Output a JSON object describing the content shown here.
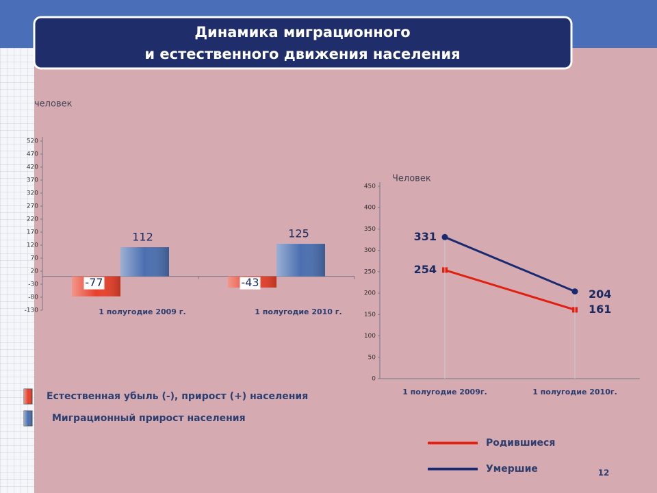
{
  "title": [
    "Динамика миграционного",
    "и естественного движения населения"
  ],
  "page_number": "12",
  "chart_data": [
    {
      "type": "bar",
      "y_label": "человек",
      "categories": [
        "1 полугодие 2009 г.",
        "1 полугодие 2010 г."
      ],
      "series": [
        {
          "name": "Естественная убыль (-), прирост (+) населения",
          "color": "#e8402a",
          "values": [
            -77,
            -43
          ]
        },
        {
          "name": "Миграционный прирост населения",
          "color": "#4a6fb0",
          "values": [
            112,
            125
          ]
        }
      ],
      "ylim": [
        -130,
        520
      ],
      "yticks": [
        -130,
        -80,
        -30,
        20,
        70,
        120,
        170,
        220,
        270,
        320,
        370,
        420,
        470,
        520
      ]
    },
    {
      "type": "line",
      "y_label": "Человек",
      "categories": [
        "1 полугодие 2009г.",
        "1 полугодие 2010г."
      ],
      "series": [
        {
          "name": "Родившиеся",
          "color": "#e02010",
          "values": [
            254,
            161
          ]
        },
        {
          "name": "Умершие",
          "color": "#1a2a70",
          "values": [
            331,
            204
          ]
        }
      ],
      "ylim": [
        0,
        450
      ],
      "yticks": [
        0,
        50,
        100,
        150,
        200,
        250,
        300,
        350,
        400,
        450
      ]
    }
  ]
}
